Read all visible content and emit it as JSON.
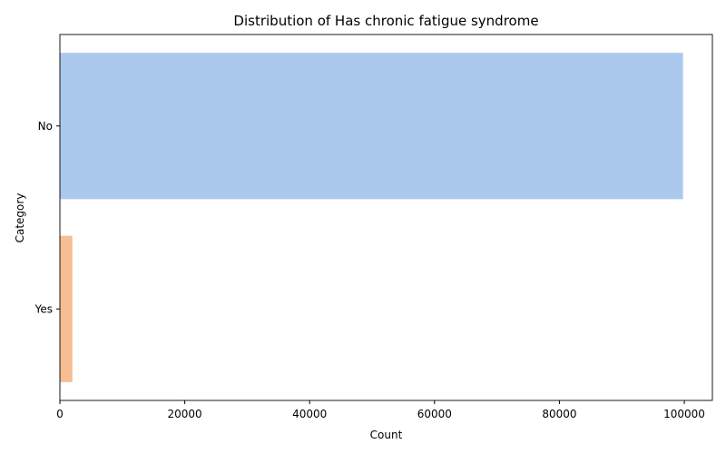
{
  "chart_data": {
    "type": "bar",
    "orientation": "horizontal",
    "title": "Distribution of Has chronic fatigue syndrome",
    "xlabel": "Count",
    "ylabel": "Category",
    "categories": [
      "No",
      "Yes"
    ],
    "values": [
      99800,
      2000
    ],
    "colors": [
      "#abc9ed",
      "#f6be93"
    ],
    "xlim": [
      0,
      104500
    ],
    "xticks": [
      0,
      20000,
      40000,
      60000,
      80000,
      100000
    ],
    "grid": false,
    "legend": "none"
  }
}
